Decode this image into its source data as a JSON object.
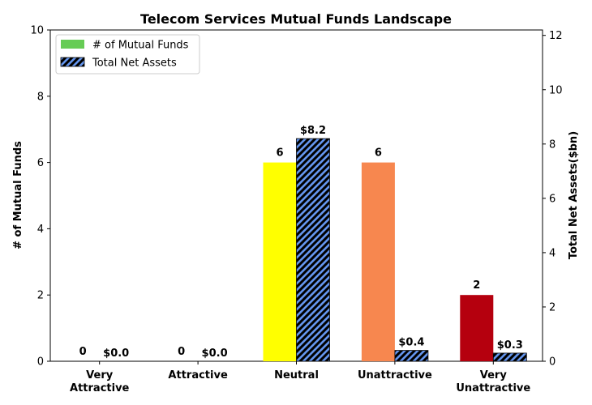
{
  "chart_data": {
    "type": "bar",
    "title": "Telecom Services Mutual Funds Landscape",
    "categories": [
      [
        "Very",
        "Attractive"
      ],
      [
        "Attractive"
      ],
      [
        "Neutral"
      ],
      [
        "Unattractive"
      ],
      [
        "Very",
        "Unattractive"
      ]
    ],
    "series": [
      {
        "name": "# of Mutual Funds",
        "axis": "left",
        "values": [
          0,
          0,
          6,
          6,
          2
        ],
        "labels": [
          "0",
          "0",
          "6",
          "6",
          "2"
        ],
        "colors": [
          "#00a651",
          "#7ac943",
          "#ffff00",
          "#f7874f",
          "#b5000e"
        ],
        "legend_color": "#66cc55"
      },
      {
        "name": "Total Net Assets",
        "axis": "right",
        "values": [
          0.0,
          0.0,
          8.2,
          0.4,
          0.3
        ],
        "labels": [
          "$0.0",
          "$0.0",
          "$8.2",
          "$0.4",
          "$0.3"
        ],
        "color": "#6495ed",
        "hatch": "//"
      }
    ],
    "ylabel": "# of Mutual Funds",
    "y2label": "Total Net Assets($bn)",
    "ylim": [
      0,
      10
    ],
    "y2lim": [
      0,
      12.2
    ],
    "yticks": [
      0,
      2,
      4,
      6,
      8,
      10
    ],
    "y2ticks": [
      0,
      2,
      4,
      6,
      8,
      10,
      12
    ],
    "legend_position": "upper-left",
    "grid": false
  }
}
